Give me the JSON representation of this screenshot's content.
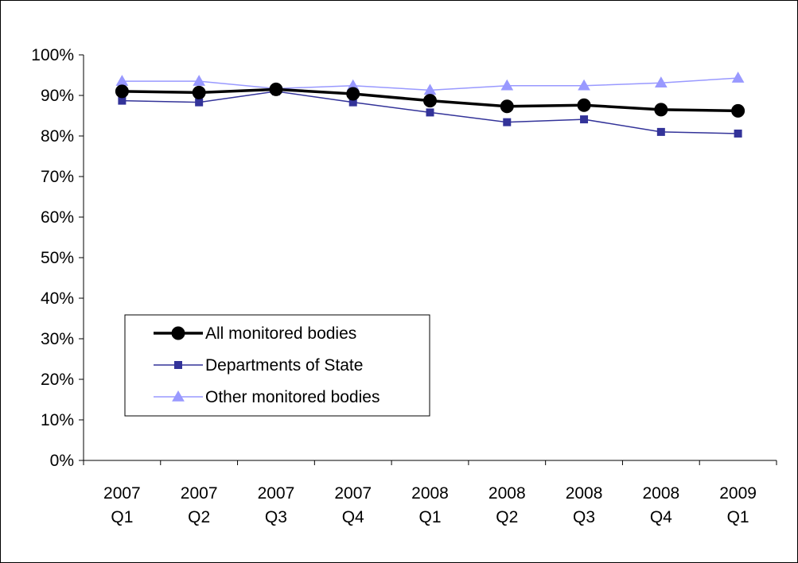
{
  "chart_data": {
    "type": "line",
    "title": "",
    "xlabel": "",
    "ylabel": "",
    "categories": [
      [
        "2007",
        "Q1"
      ],
      [
        "2007",
        "Q2"
      ],
      [
        "2007",
        "Q3"
      ],
      [
        "2007",
        "Q4"
      ],
      [
        "2008",
        "Q1"
      ],
      [
        "2008",
        "Q2"
      ],
      [
        "2008",
        "Q3"
      ],
      [
        "2008",
        "Q4"
      ],
      [
        "2009",
        "Q1"
      ]
    ],
    "ylim": [
      0,
      100
    ],
    "yticks": [
      0,
      10,
      20,
      30,
      40,
      50,
      60,
      70,
      80,
      90,
      100
    ],
    "ytick_labels": [
      "0%",
      "10%",
      "20%",
      "30%",
      "40%",
      "50%",
      "60%",
      "70%",
      "80%",
      "90%",
      "100%"
    ],
    "grid": false,
    "legend_position": "lower-left",
    "series": [
      {
        "name": "All monitored bodies",
        "color": "#000000",
        "marker": "circle",
        "values": [
          91.0,
          90.7,
          91.5,
          90.4,
          88.7,
          87.3,
          87.6,
          86.5,
          86.2
        ]
      },
      {
        "name": "Departments of State",
        "color": "#333399",
        "marker": "square",
        "values": [
          88.7,
          88.3,
          91.0,
          88.3,
          85.8,
          83.4,
          84.1,
          81.0,
          80.6
        ]
      },
      {
        "name": "Other monitored bodies",
        "color": "#9999ff",
        "marker": "triangle",
        "values": [
          93.5,
          93.5,
          91.7,
          92.4,
          91.3,
          92.4,
          92.4,
          93.1,
          94.3
        ]
      }
    ]
  }
}
